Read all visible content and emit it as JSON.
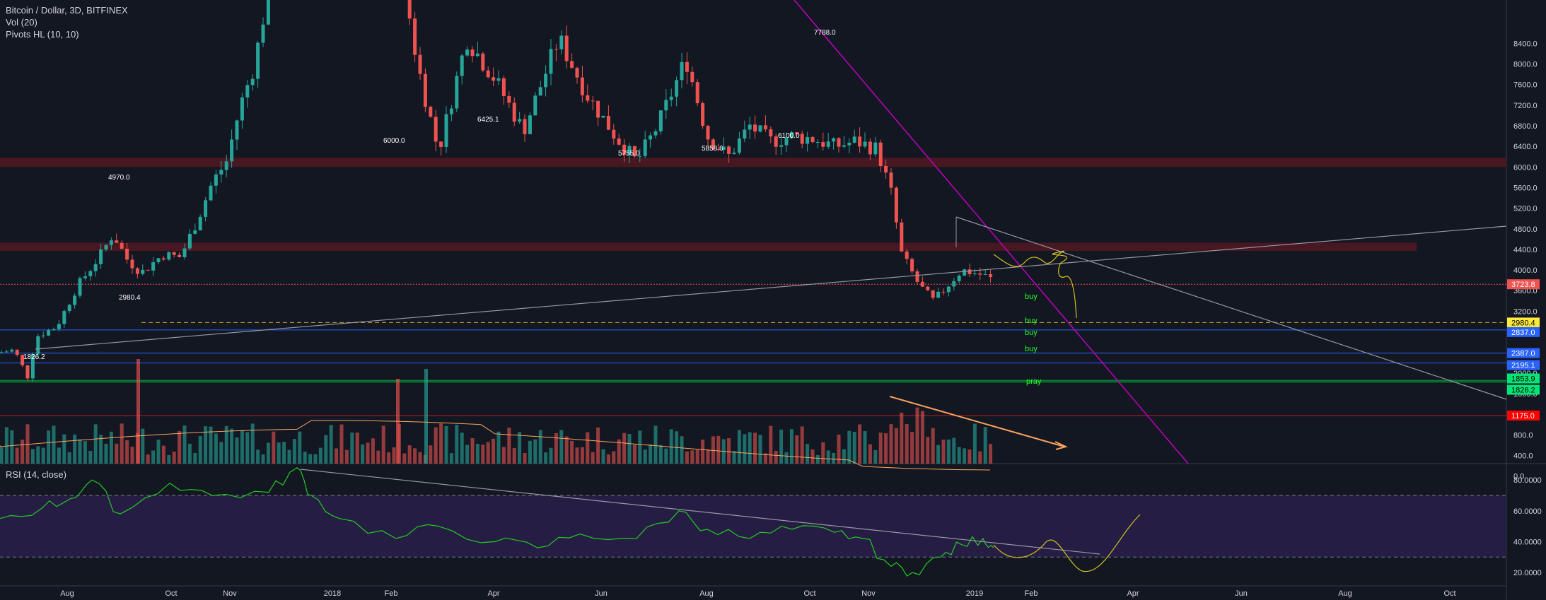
{
  "legend": {
    "symbol": "Bitcoin / Dollar, 3D, BITFINEX",
    "vol": "Vol (20)",
    "pivots": "Pivots HL (10, 10)",
    "rsi": "RSI (14, close)"
  },
  "chart_data": {
    "type": "candlestick",
    "price_axis": {
      "min": -100,
      "max": 8500,
      "ticks": [
        "8400.0",
        "8000.0",
        "7600.0",
        "7200.0",
        "6800.0",
        "6400.0",
        "6000.0",
        "5600.0",
        "5200.0",
        "4800.0",
        "4400.0",
        "4000.0",
        "3600.0",
        "3200.0",
        "2800.0",
        "2400.0",
        "2000.0",
        "1600.0",
        "1200.0",
        "800.0",
        "400.0",
        "0.0"
      ]
    },
    "rsi_axis": {
      "ticks": [
        "80.0000",
        "60.0000",
        "40.0000",
        "20.0000"
      ],
      "band_upper": 70,
      "band_lower": 30
    },
    "time_axis": [
      "Aug",
      "Oct",
      "Nov",
      "2018",
      "Feb",
      "Apr",
      "Jun",
      "Aug",
      "Oct",
      "Nov",
      "2019",
      "Feb",
      "Apr",
      "Jun",
      "Aug",
      "Oct"
    ],
    "pivot_labels": [
      "1826.2",
      "2980.4",
      "4970.0",
      "6000.0",
      "6425.1",
      "5755.0",
      "5858.6",
      "6100.0",
      "7788.0"
    ],
    "price_tags": [
      {
        "value": "3723.8",
        "color": "#ef5350",
        "text_color": "#ffffff"
      },
      {
        "value": "2980.4",
        "color": "#ffeb3b",
        "text_color": "#000000"
      },
      {
        "value": "2837.0",
        "color": "#2962ff",
        "text_color": "#ffffff"
      },
      {
        "value": "2387.0",
        "color": "#2962ff",
        "text_color": "#ffffff"
      },
      {
        "value": "2195.1",
        "color": "#2962ff",
        "text_color": "#ffffff"
      },
      {
        "value": "1853.9",
        "color": "#00e676",
        "text_color": "#000000"
      },
      {
        "value": "1826.2",
        "color": "#00e676",
        "text_color": "#000000"
      },
      {
        "value": "1175.0",
        "color": "#ff0000",
        "text_color": "#ffffff"
      }
    ],
    "annotations": [
      "buy",
      "buy",
      "buy",
      "buy",
      "pray"
    ],
    "resistance_zones": [
      [
        4370,
        4530
      ],
      [
        6000,
        6180
      ]
    ],
    "colors": {
      "up": "#26a69a",
      "down": "#ef5350",
      "volume_ma": "#f7a35c",
      "rsi": "#22cc22",
      "trendline": "#c000c0"
    }
  }
}
